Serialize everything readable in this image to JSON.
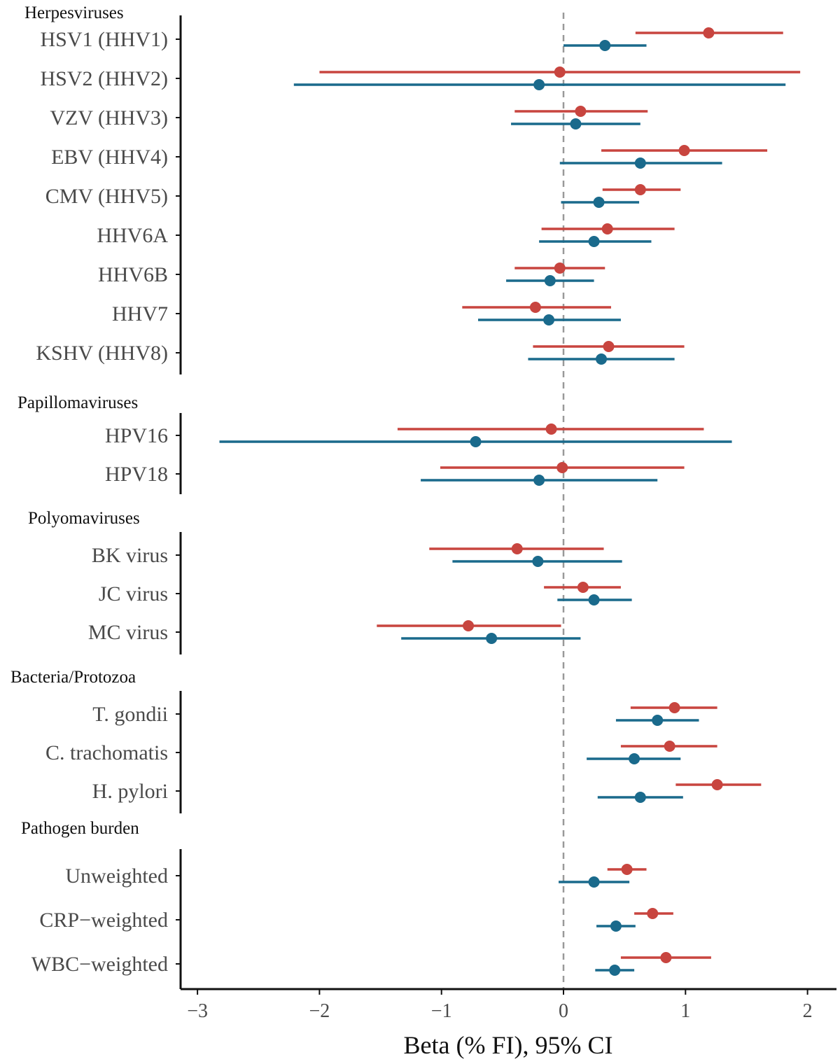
{
  "chart_data": {
    "type": "forest",
    "xlabel": "Beta (% FI), 95% CI",
    "xlim": [
      -3.1,
      2.25
    ],
    "xticks": [
      -3,
      -2,
      -1,
      0,
      1,
      2
    ],
    "xtick_labels": [
      "−3",
      "−2",
      "−1",
      "0",
      "1",
      "2"
    ],
    "reference_line": 0,
    "grid": false,
    "colors": {
      "series_a": "#c8453f",
      "series_b": "#1a6a8c",
      "reference": "#999999"
    },
    "groups": [
      {
        "title": "Herpesviruses",
        "rows": [
          {
            "label": "HSV1 (HHV1)",
            "a": [
              1.19,
              0.59,
              1.8
            ],
            "b": [
              0.34,
              0.0,
              0.68
            ]
          },
          {
            "label": "HSV2 (HHV2)",
            "a": [
              -0.03,
              -2.0,
              1.94
            ],
            "b": [
              -0.2,
              -2.21,
              1.82
            ]
          },
          {
            "label": "VZV (HHV3)",
            "a": [
              0.14,
              -0.4,
              0.69
            ],
            "b": [
              0.1,
              -0.43,
              0.63
            ]
          },
          {
            "label": "EBV (HHV4)",
            "a": [
              0.99,
              0.31,
              1.67
            ],
            "b": [
              0.63,
              -0.03,
              1.3
            ]
          },
          {
            "label": "CMV (HHV5)",
            "a": [
              0.63,
              0.32,
              0.96
            ],
            "b": [
              0.29,
              -0.02,
              0.62
            ]
          },
          {
            "label": "HHV6A",
            "a": [
              0.36,
              -0.18,
              0.91
            ],
            "b": [
              0.25,
              -0.2,
              0.72
            ]
          },
          {
            "label": "HHV6B",
            "a": [
              -0.03,
              -0.4,
              0.34
            ],
            "b": [
              -0.11,
              -0.47,
              0.25
            ]
          },
          {
            "label": "HHV7",
            "a": [
              -0.23,
              -0.83,
              0.39
            ],
            "b": [
              -0.12,
              -0.7,
              0.47
            ]
          },
          {
            "label": "KSHV (HHV8)",
            "a": [
              0.37,
              -0.25,
              0.99
            ],
            "b": [
              0.31,
              -0.29,
              0.91
            ]
          }
        ]
      },
      {
        "title": "Papillomaviruses",
        "rows": [
          {
            "label": "HPV16",
            "a": [
              -0.1,
              -1.36,
              1.15
            ],
            "b": [
              -0.72,
              -2.82,
              1.38
            ]
          },
          {
            "label": "HPV18",
            "a": [
              -0.01,
              -1.01,
              0.99
            ],
            "b": [
              -0.2,
              -1.17,
              0.77
            ]
          }
        ]
      },
      {
        "title": "Polyomaviruses",
        "rows": [
          {
            "label": "BK virus",
            "a": [
              -0.38,
              -1.1,
              0.33
            ],
            "b": [
              -0.21,
              -0.91,
              0.48
            ]
          },
          {
            "label": "JC virus",
            "a": [
              0.16,
              -0.16,
              0.47
            ],
            "b": [
              0.25,
              -0.05,
              0.56
            ]
          },
          {
            "label": "MC virus",
            "a": [
              -0.78,
              -1.53,
              -0.02
            ],
            "b": [
              -0.59,
              -1.33,
              0.14
            ]
          }
        ]
      },
      {
        "title": "Bacteria/Protozoa",
        "rows": [
          {
            "label": "T. gondii",
            "a": [
              0.91,
              0.55,
              1.26
            ],
            "b": [
              0.77,
              0.43,
              1.11
            ]
          },
          {
            "label": "C. trachomatis",
            "a": [
              0.87,
              0.47,
              1.26
            ],
            "b": [
              0.58,
              0.19,
              0.96
            ]
          },
          {
            "label": "H. pylori",
            "a": [
              1.26,
              0.92,
              1.62
            ],
            "b": [
              0.63,
              0.28,
              0.98
            ]
          }
        ]
      },
      {
        "title": "Pathogen burden",
        "rows": [
          {
            "label": "Unweighted",
            "a": [
              0.52,
              0.36,
              0.68
            ],
            "b": [
              0.25,
              -0.04,
              0.54
            ]
          },
          {
            "label": "CRP−weighted",
            "a": [
              0.73,
              0.58,
              0.9
            ],
            "b": [
              0.43,
              0.27,
              0.59
            ]
          },
          {
            "label": "WBC−weighted",
            "a": [
              0.84,
              0.47,
              1.21
            ],
            "b": [
              0.42,
              0.26,
              0.58
            ]
          }
        ]
      }
    ]
  }
}
